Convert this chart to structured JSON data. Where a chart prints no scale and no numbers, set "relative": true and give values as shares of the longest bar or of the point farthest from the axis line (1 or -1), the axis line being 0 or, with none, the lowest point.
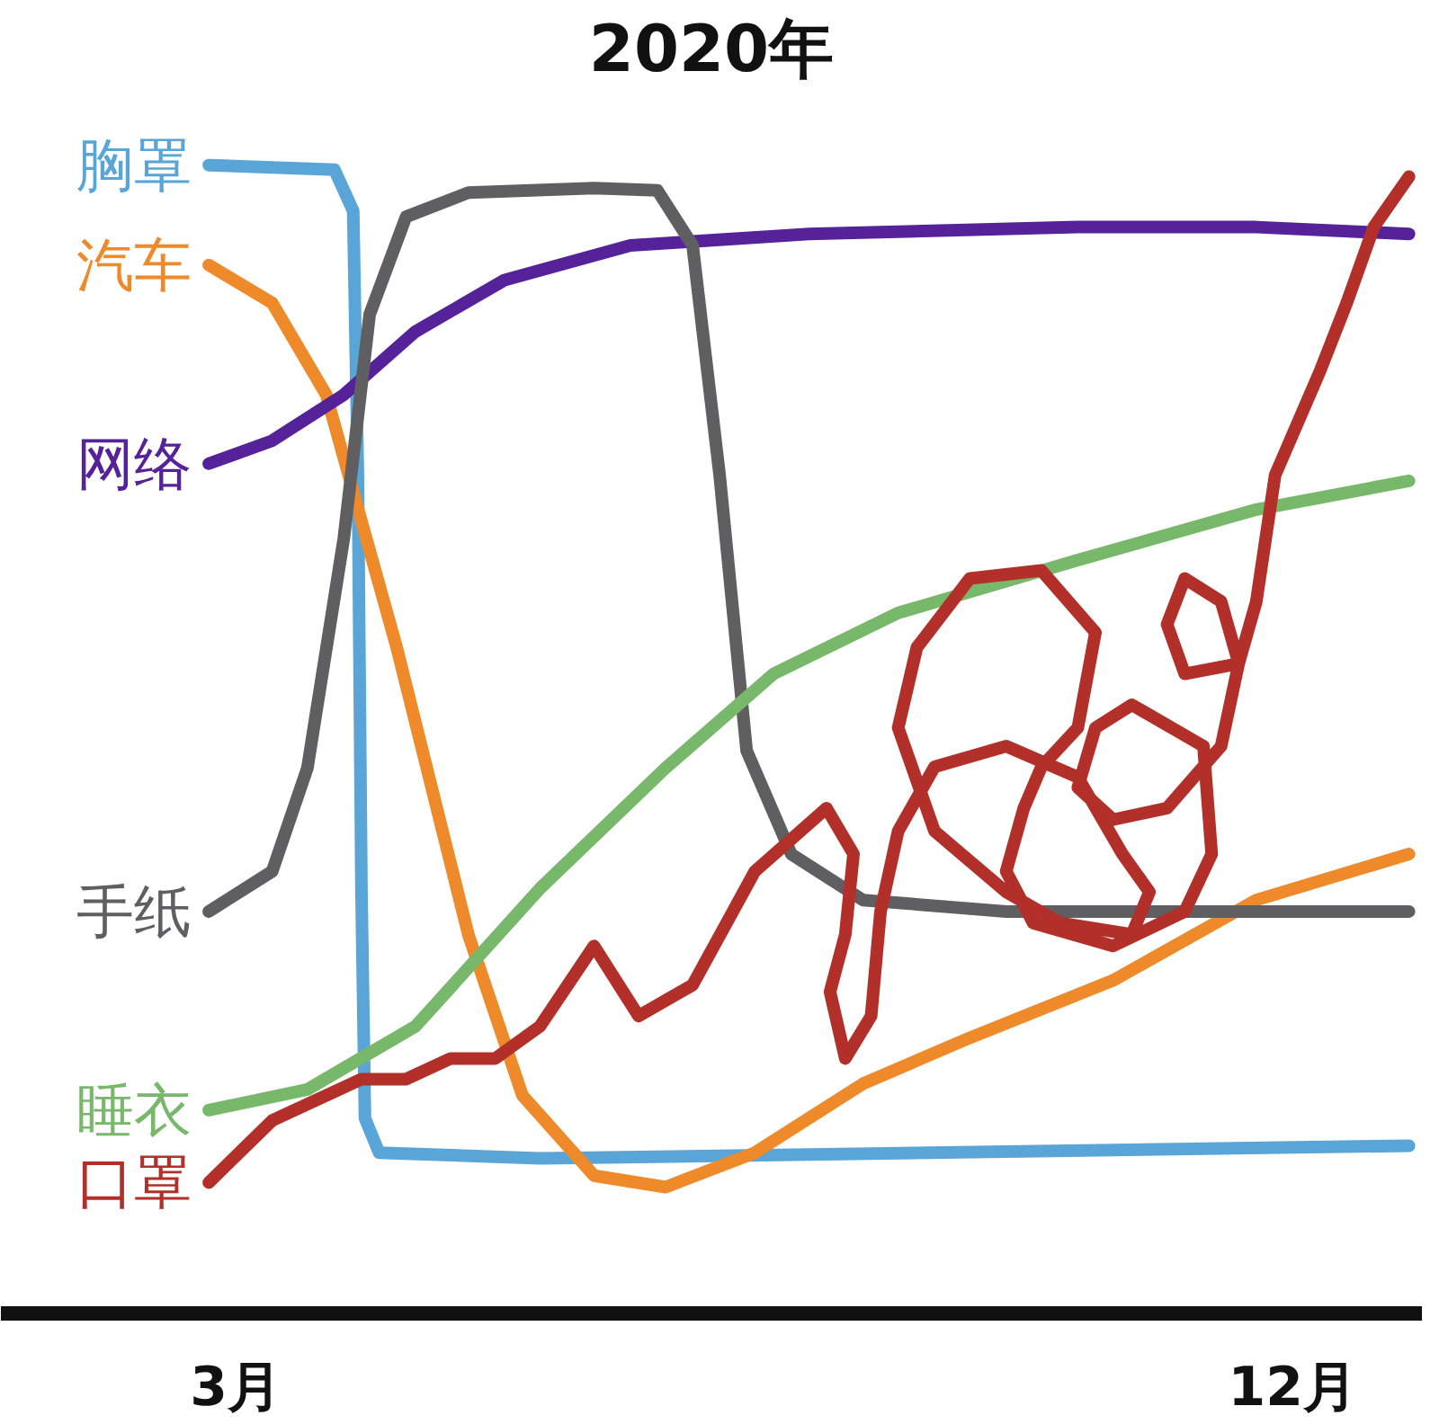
{
  "chart_data": {
    "type": "line",
    "title": "2020年",
    "relative": true,
    "grid": false,
    "xlim": [
      1.0,
      13.1
    ],
    "xticks": [
      {
        "value": 3,
        "label": "3月"
      },
      {
        "value": 12,
        "label": "12月"
      }
    ],
    "series": [
      {
        "name": "胸罩",
        "color": "#5aa5d8",
        "x": [
          2.77,
          3.84,
          4.0,
          4.04,
          4.07,
          4.1,
          4.22,
          5.59,
          12.99
        ],
        "values": [
          1.0,
          0.996,
          0.96,
          0.73,
          0.37,
          0.17,
          0.14,
          0.135,
          0.146
        ]
      },
      {
        "name": "汽车",
        "color": "#ee8a2a",
        "x": [
          2.77,
          3.31,
          3.77,
          4.37,
          4.98,
          5.44,
          6.05,
          6.66,
          7.42,
          8.34,
          9.25,
          10.47,
          11.69,
          12.99
        ],
        "values": [
          0.913,
          0.88,
          0.8,
          0.58,
          0.33,
          0.19,
          0.12,
          0.11,
          0.14,
          0.2,
          0.24,
          0.29,
          0.36,
          0.4
        ]
      },
      {
        "name": "网络",
        "color": "#55229a",
        "x": [
          2.77,
          3.31,
          3.92,
          4.53,
          5.29,
          6.36,
          7.88,
          10.17,
          11.69,
          12.99
        ],
        "values": [
          0.74,
          0.76,
          0.8,
          0.855,
          0.9,
          0.93,
          0.94,
          0.946,
          0.946,
          0.94
        ]
      },
      {
        "name": "手纸",
        "color": "#5f5f62",
        "x": [
          2.77,
          3.31,
          3.61,
          3.92,
          4.14,
          4.45,
          4.98,
          6.05,
          6.59,
          6.89,
          7.12,
          7.35,
          7.73,
          8.34,
          9.56,
          12.99
        ],
        "values": [
          0.35,
          0.385,
          0.475,
          0.675,
          0.87,
          0.955,
          0.976,
          0.98,
          0.978,
          0.93,
          0.73,
          0.49,
          0.4,
          0.36,
          0.35,
          0.35
        ]
      },
      {
        "name": "睡衣",
        "color": "#78b86a",
        "x": [
          2.77,
          3.61,
          4.53,
          5.59,
          6.66,
          7.58,
          8.64,
          10.17,
          11.69,
          12.99
        ],
        "values": [
          0.177,
          0.195,
          0.25,
          0.37,
          0.475,
          0.557,
          0.61,
          0.656,
          0.7,
          0.725
        ]
      },
      {
        "name": "口罩",
        "color": "#b3302a",
        "x": [
          2.77,
          3.31,
          3.69,
          4.07,
          4.45,
          4.83,
          5.21,
          5.59,
          6.05,
          6.43,
          6.89,
          7.42,
          8.03,
          8.26,
          8.19,
          8.06,
          8.19,
          8.41,
          8.49,
          8.64,
          8.95,
          9.56,
          10.17,
          10.55,
          10.78,
          10.63,
          10.02,
          9.56,
          8.95,
          8.64,
          8.8,
          9.25,
          9.86,
          10.32,
          10.17,
          9.86,
          9.71,
          9.56,
          9.79,
          10.47,
          11.08,
          11.31,
          11.24,
          10.63,
          10.32,
          10.17,
          10.47,
          10.93,
          11.39,
          11.54,
          11.39,
          11.08,
          10.93,
          11.08,
          11.54,
          11.69,
          11.85,
          12.23,
          12.46,
          12.69,
          12.99
        ],
        "values": [
          0.114,
          0.168,
          0.186,
          0.204,
          0.204,
          0.222,
          0.222,
          0.25,
          0.32,
          0.259,
          0.286,
          0.385,
          0.44,
          0.4,
          0.33,
          0.28,
          0.222,
          0.259,
          0.35,
          0.42,
          0.476,
          0.494,
          0.467,
          0.4,
          0.367,
          0.33,
          0.34,
          0.367,
          0.42,
          0.51,
          0.58,
          0.64,
          0.647,
          0.593,
          0.51,
          0.476,
          0.44,
          0.385,
          0.34,
          0.32,
          0.35,
          0.4,
          0.494,
          0.53,
          0.51,
          0.458,
          0.43,
          0.44,
          0.494,
          0.566,
          0.62,
          0.64,
          0.6,
          0.557,
          0.566,
          0.62,
          0.73,
          0.82,
          0.88,
          0.946,
          0.99
        ]
      }
    ]
  }
}
